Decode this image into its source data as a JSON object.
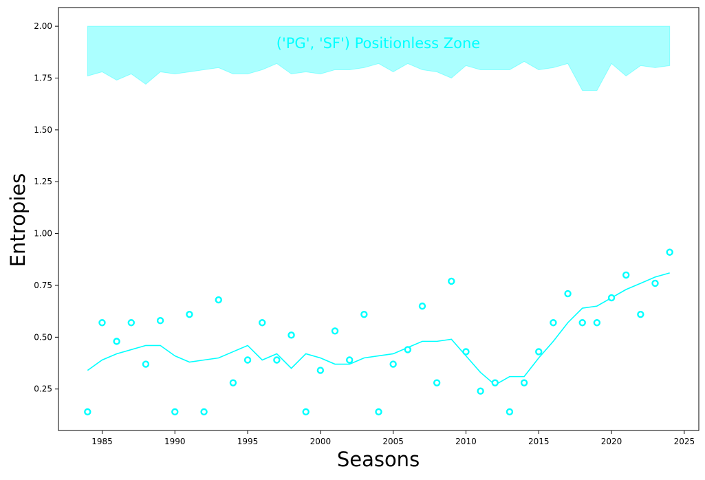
{
  "chart_data": {
    "type": "scatter",
    "xlabel": "Seasons",
    "ylabel": "Entropies",
    "xlim": [
      1982,
      2026
    ],
    "ylim": [
      0.05,
      2.09
    ],
    "x_ticks": [
      1985,
      1990,
      1995,
      2000,
      2005,
      2010,
      2015,
      2020,
      2025
    ],
    "x_tick_labels": [
      "1985",
      "1990",
      "1995",
      "2000",
      "2005",
      "2010",
      "2015",
      "2020",
      "2025"
    ],
    "y_ticks": [
      0.25,
      0.5,
      0.75,
      1.0,
      1.25,
      1.5,
      1.75,
      2.0
    ],
    "y_tick_labels": [
      "0.25",
      "0.50",
      "0.75",
      "1.00",
      "1.25",
      "1.50",
      "1.75",
      "2.00"
    ],
    "grid": false,
    "color": "#00ffff",
    "zone": {
      "label": "('PG', 'SF') Positionless Zone",
      "upper": 2.0,
      "x": [
        1984,
        1985,
        1986,
        1987,
        1988,
        1989,
        1990,
        1991,
        1992,
        1993,
        1994,
        1995,
        1996,
        1997,
        1998,
        1999,
        2000,
        2001,
        2002,
        2003,
        2004,
        2005,
        2006,
        2007,
        2008,
        2009,
        2010,
        2011,
        2012,
        2013,
        2014,
        2015,
        2016,
        2017,
        2018,
        2019,
        2020,
        2021,
        2022,
        2023,
        2024
      ],
      "lower": [
        1.76,
        1.78,
        1.74,
        1.77,
        1.72,
        1.78,
        1.77,
        1.78,
        1.79,
        1.8,
        1.77,
        1.77,
        1.79,
        1.82,
        1.77,
        1.78,
        1.77,
        1.79,
        1.79,
        1.8,
        1.82,
        1.78,
        1.82,
        1.79,
        1.78,
        1.75,
        1.81,
        1.79,
        1.79,
        1.79,
        1.83,
        1.79,
        1.8,
        1.82,
        1.69,
        1.69,
        1.82,
        1.76,
        1.81,
        1.8,
        1.81
      ]
    },
    "series": [
      {
        "kind": "points",
        "x": [
          1984,
          1985,
          1986,
          1987,
          1988,
          1989,
          1990,
          1991,
          1992,
          1993,
          1994,
          1995,
          1996,
          1997,
          1998,
          1999,
          2000,
          2001,
          2002,
          2003,
          2004,
          2005,
          2006,
          2007,
          2008,
          2009,
          2010,
          2011,
          2012,
          2013,
          2014,
          2015,
          2016,
          2017,
          2018,
          2019,
          2020,
          2021,
          2022,
          2023,
          2024
        ],
        "values": [
          0.14,
          0.57,
          0.48,
          0.57,
          0.37,
          0.58,
          0.14,
          0.61,
          0.14,
          0.68,
          0.28,
          0.39,
          0.57,
          0.39,
          0.51,
          0.14,
          0.34,
          0.53,
          0.39,
          0.61,
          0.14,
          0.37,
          0.44,
          0.65,
          0.28,
          0.77,
          0.43,
          0.24,
          0.28,
          0.14,
          0.28,
          0.43,
          0.57,
          0.71,
          0.57,
          0.57,
          0.69,
          0.8,
          0.61,
          0.76,
          0.91
        ]
      },
      {
        "kind": "line",
        "x": [
          1984,
          1985,
          1986,
          1987,
          1988,
          1989,
          1990,
          1991,
          1992,
          1993,
          1994,
          1995,
          1996,
          1997,
          1998,
          1999,
          2000,
          2001,
          2002,
          2003,
          2004,
          2005,
          2006,
          2007,
          2008,
          2009,
          2010,
          2011,
          2012,
          2013,
          2014,
          2015,
          2016,
          2017,
          2018,
          2019,
          2020,
          2021,
          2022,
          2023,
          2024
        ],
        "values": [
          0.34,
          0.39,
          0.42,
          0.44,
          0.46,
          0.46,
          0.41,
          0.38,
          0.39,
          0.4,
          0.43,
          0.46,
          0.39,
          0.42,
          0.35,
          0.42,
          0.4,
          0.37,
          0.37,
          0.4,
          0.41,
          0.42,
          0.45,
          0.48,
          0.48,
          0.49,
          0.41,
          0.33,
          0.27,
          0.31,
          0.31,
          0.4,
          0.48,
          0.57,
          0.64,
          0.65,
          0.69,
          0.73,
          0.76,
          0.79,
          0.81
        ]
      }
    ]
  }
}
